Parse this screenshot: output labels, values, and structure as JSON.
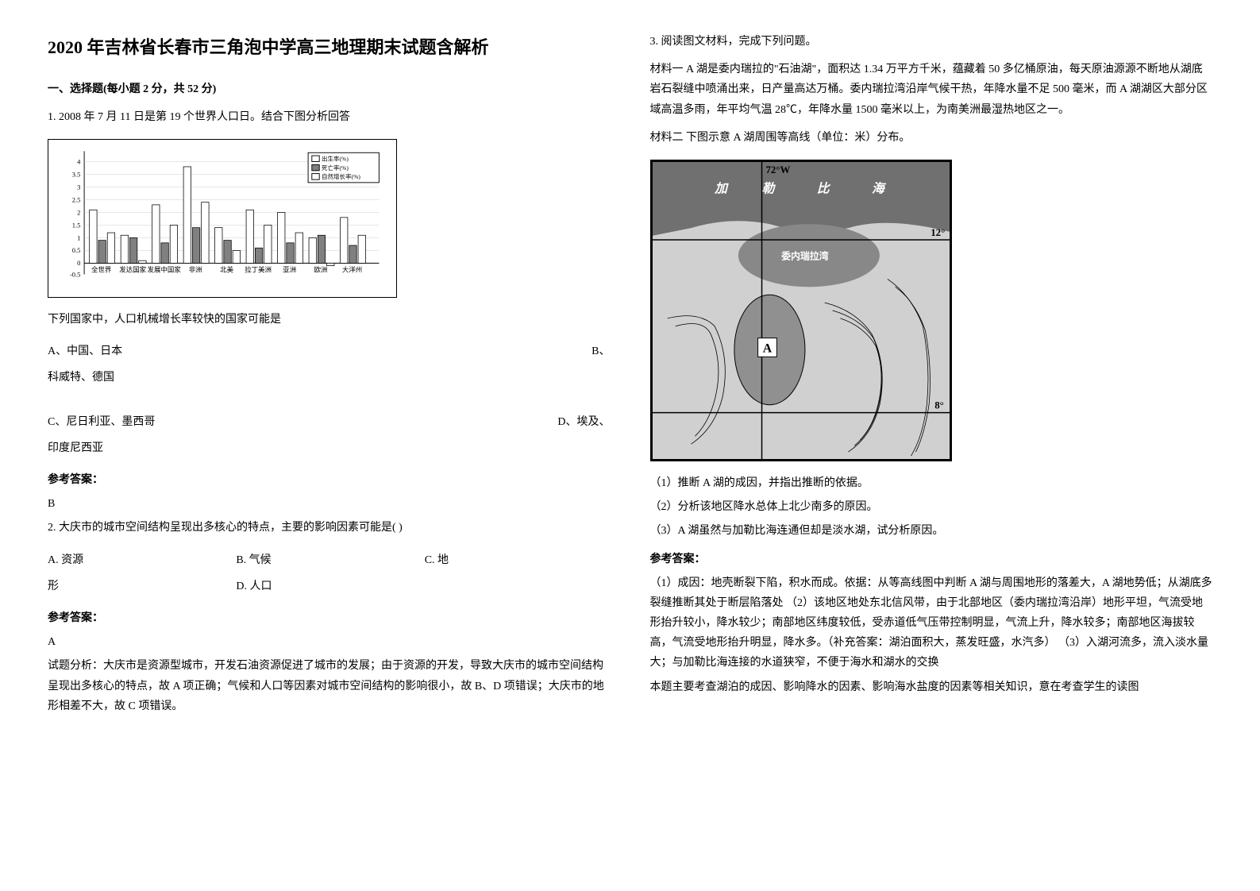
{
  "title": "2020 年吉林省长春市三角泡中学高三地理期末试题含解析",
  "section1": {
    "header": "一、选择题(每小题 2 分，共 52 分)",
    "q1": {
      "prompt": "1. 2008 年 7 月 11 日是第 19 个世界人口日。结合下图分析回答",
      "chart": {
        "type": "bar",
        "categories": [
          "全世界",
          "发达国家",
          "发展中国家",
          "非洲",
          "北美",
          "拉丁美洲",
          "亚洲",
          "欧洲",
          "大洋州"
        ],
        "series": [
          {
            "name": "出生率(%)",
            "color": "#ffffff",
            "border": "#000000",
            "values": [
              2.1,
              1.1,
              2.3,
              3.8,
              1.4,
              2.1,
              2.0,
              1.0,
              1.8
            ]
          },
          {
            "name": "死亡率(%)",
            "color": "#808080",
            "border": "#000000",
            "values": [
              0.9,
              1.0,
              0.8,
              1.4,
              0.9,
              0.6,
              0.8,
              1.1,
              0.7
            ]
          },
          {
            "name": "自然增长率(%)",
            "color": "#ffffff",
            "border": "#000000",
            "values": [
              1.2,
              0.1,
              1.5,
              2.4,
              0.5,
              1.5,
              1.2,
              -0.1,
              1.1
            ]
          }
        ],
        "ylim": [
          -0.5,
          4
        ],
        "ytick_step": 0.5,
        "legend_items": [
          "出生率(%)",
          "死亡率(%)",
          "自然增长率(%)"
        ],
        "background_color": "#ffffff",
        "grid_color": "#000000"
      },
      "sub_question": "下列国家中，人口机械增长率较快的国家可能是",
      "option_a": "A、中国、日本",
      "option_b": "B、科威特、德国",
      "option_c": "C、尼日利亚、墨西哥",
      "option_d": "D、埃及、印度尼西亚",
      "answer_label": "参考答案：",
      "answer": "B"
    },
    "q2": {
      "prompt": "2. 大庆市的城市空间结构呈现出多核心的特点，主要的影响因素可能是(        )",
      "option_a": "A. 资源",
      "option_b": "B. 气候",
      "option_c": "C. 地形",
      "option_d": "D. 人口",
      "answer_label": "参考答案：",
      "answer": "A",
      "analysis": "试题分析：大庆市是资源型城市，开发石油资源促进了城市的发展；由于资源的开发，导致大庆市的城市空间结构呈现出多核心的特点，故 A 项正确；气候和人口等因素对城市空间结构的影响很小，故 B、D 项错误；大庆市的地形相差不大，故 C 项错误。"
    }
  },
  "section2": {
    "q3": {
      "prompt": "3. 阅读图文材料，完成下列问题。",
      "material1": "材料一   A 湖是委内瑞拉的\"石油湖\"，面积达 1.34 万平方千米，蕴藏着 50 多亿桶原油，每天原油源源不断地从湖底岩石裂缝中喷涌出来，日产量高达万桶。委内瑞拉湾沿岸气候干热，年降水量不足 500 毫米，而 A 湖湖区大部分区域高温多雨，年平均气温 28℃，年降水量 1500 毫米以上，为南美洲最湿热地区之一。",
      "material2": "材料二   下图示意 A 湖周围等高线（单位：米）分布。",
      "map": {
        "longitude_label": "72°W",
        "lat1": "12°",
        "lat2": "8°",
        "region_labels": [
          "加",
          "勒",
          "比",
          "海"
        ],
        "gulf_label": "委内瑞拉湾",
        "lake_label": "A"
      },
      "sub_q1": "（1）推断 A 湖的成因，并指出推断的依据。",
      "sub_q2": "（2）分析该地区降水总体上北少南多的原因。",
      "sub_q3": "（3）A 湖虽然与加勒比海连通但却是淡水湖，试分析原因。",
      "answer_label": "参考答案：",
      "answer1": "（1）成因：地壳断裂下陷，积水而成。依据：从等高线图中判断 A 湖与周围地形的落差大，A 湖地势低；从湖底多裂缝推断其处于断层陷落处    （2）该地区地处东北信风带，由于北部地区（委内瑞拉湾沿岸）地形平坦，气流受地形抬升较小，降水较少；南部地区纬度较低，受赤道低气压带控制明显，气流上升，降水较多；南部地区海拔较高，气流受地形抬升明显，降水多。（补充答案：湖泊面积大，蒸发旺盛，水汽多）   （3）入湖河流多，流入淡水量大；与加勒比海连接的水道狭窄，不便于海水和湖水的交换",
      "analysis": "本题主要考查湖泊的成因、影响降水的因素、影响海水盐度的因素等相关知识，意在考查学生的读图"
    }
  }
}
